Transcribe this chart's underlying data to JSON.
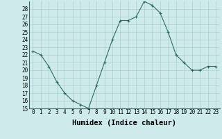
{
  "x": [
    0,
    1,
    2,
    3,
    4,
    5,
    6,
    7,
    8,
    9,
    10,
    11,
    12,
    13,
    14,
    15,
    16,
    17,
    18,
    19,
    20,
    21,
    22,
    23
  ],
  "y": [
    22.5,
    22.0,
    20.5,
    18.5,
    17.0,
    16.0,
    15.5,
    15.0,
    18.0,
    21.0,
    24.0,
    26.5,
    26.5,
    27.0,
    29.0,
    28.5,
    27.5,
    25.0,
    22.0,
    21.0,
    20.0,
    20.0,
    20.5,
    20.5
  ],
  "line_color": "#2d6b5e",
  "marker": "+",
  "marker_size": 3,
  "bg_color": "#ceeaea",
  "grid_color": "#aacece",
  "xlabel": "Humidex (Indice chaleur)",
  "ylim": [
    15,
    29
  ],
  "xlim": [
    -0.5,
    23.5
  ],
  "yticks": [
    15,
    16,
    17,
    18,
    19,
    20,
    21,
    22,
    23,
    24,
    25,
    26,
    27,
    28
  ],
  "xticks": [
    0,
    1,
    2,
    3,
    4,
    5,
    6,
    7,
    8,
    9,
    10,
    11,
    12,
    13,
    14,
    15,
    16,
    17,
    18,
    19,
    20,
    21,
    22,
    23
  ],
  "tick_fontsize": 5.5,
  "label_fontsize": 7.5
}
